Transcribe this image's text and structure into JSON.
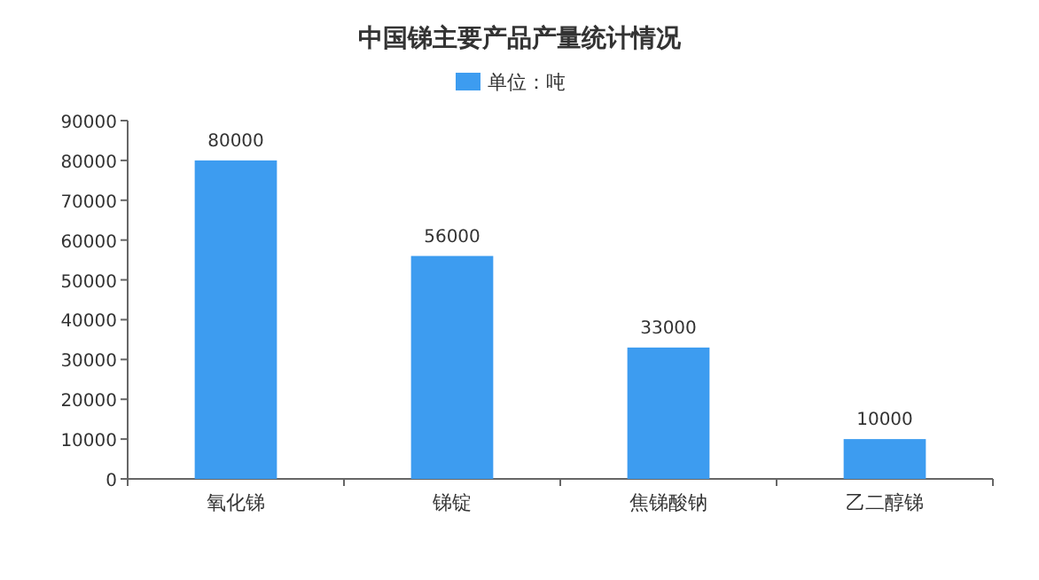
{
  "chart_data": {
    "type": "bar",
    "title": "中国锑主要产品产量统计情况",
    "categories": [
      "氧化锑",
      "锑锭",
      "焦锑酸钠",
      "乙二醇锑"
    ],
    "series": [
      {
        "name": "单位：吨",
        "color": "#3d9cf0",
        "values": [
          80000,
          56000,
          33000,
          10000
        ]
      }
    ],
    "ylim": [
      0,
      90000
    ],
    "yticks": [
      0,
      10000,
      20000,
      30000,
      40000,
      50000,
      60000,
      70000,
      80000,
      90000
    ],
    "data_labels": true,
    "legend": "top",
    "grid": false
  }
}
